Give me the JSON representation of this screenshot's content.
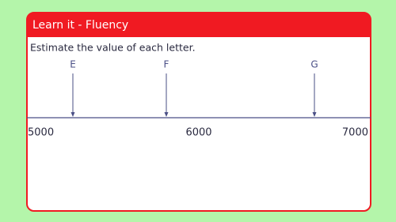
{
  "header": {
    "title": "Learn it - Fluency"
  },
  "instruction": "Estimate the value of each letter.",
  "number_line": {
    "labels": [
      "5000",
      "6000",
      "7000"
    ],
    "letters": [
      "E",
      "F",
      "G"
    ]
  }
}
